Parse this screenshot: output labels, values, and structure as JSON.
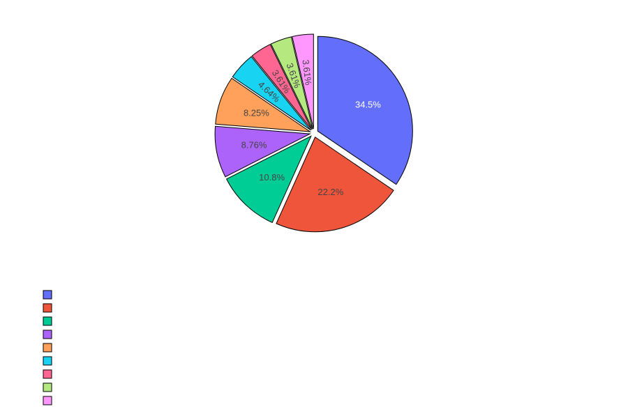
{
  "chart_data": {
    "type": "pie",
    "values": [
      34.5,
      22.2,
      10.8,
      8.76,
      8.25,
      4.64,
      3.61,
      3.61,
      3.61
    ],
    "labels": [
      "34.5%",
      "22.2%",
      "10.8%",
      "8.76%",
      "8.25%",
      "4.64%",
      "3.61%",
      "3.61%",
      "3.61%"
    ],
    "colors": [
      "#636efa",
      "#ef553b",
      "#00cc96",
      "#ab63fa",
      "#ffa15a",
      "#19d3f3",
      "#ff6692",
      "#b6e880",
      "#ff97ff"
    ],
    "label_colors": [
      "#ffffff",
      "#444444",
      "#444444",
      "#444444",
      "#444444",
      "#444444",
      "#444444",
      "#444444",
      "#444444"
    ],
    "direction": "clockwise",
    "start_angle": 90,
    "pulled_slices": "all",
    "legend_position": "bottom-left"
  }
}
